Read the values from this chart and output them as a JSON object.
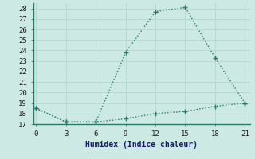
{
  "xlabel": "Humidex (Indice chaleur)",
  "x": [
    0,
    3,
    6,
    9,
    12,
    15,
    18,
    21
  ],
  "y_upper": [
    18.5,
    17.2,
    17.2,
    23.8,
    27.7,
    28.1,
    23.3,
    19.0
  ],
  "y_lower": [
    18.5,
    17.2,
    17.2,
    17.5,
    18.0,
    18.2,
    18.7,
    19.0
  ],
  "line_color": "#2a7a6a",
  "bg_color": "#cce9e4",
  "grid_color": "#b8d8d3",
  "axis_color": "#2a7a6a",
  "ylim": [
    17,
    28.5
  ],
  "yticks": [
    17,
    18,
    19,
    20,
    21,
    22,
    23,
    24,
    25,
    26,
    27,
    28
  ],
  "xticks": [
    0,
    3,
    6,
    9,
    12,
    15,
    18,
    21
  ],
  "xlabel_color": "#1a1a6e",
  "tick_color": "#1a1a1a"
}
